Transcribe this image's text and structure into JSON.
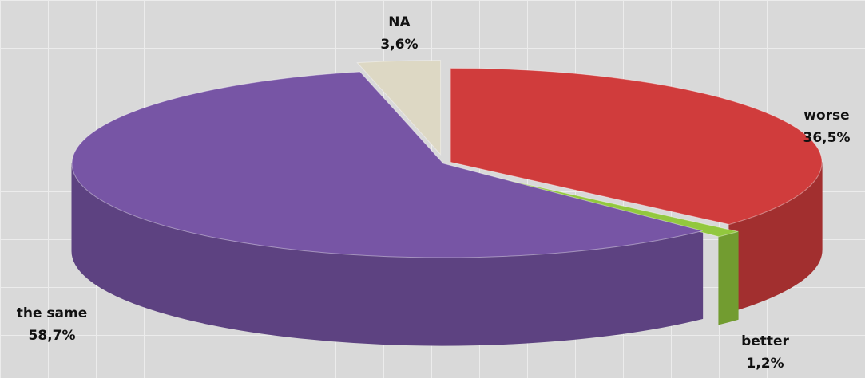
{
  "chart_data": {
    "type": "pie",
    "categories": [
      "worse",
      "better",
      "the same",
      "NA"
    ],
    "values": [
      36.5,
      1.2,
      58.7,
      3.6
    ],
    "value_labels": [
      "36,5%",
      "1,2%",
      "58,7%",
      "3,6%"
    ],
    "colors": [
      "#d03c3c",
      "#92c83e",
      "#7755a5",
      "#ddd8c4"
    ]
  }
}
